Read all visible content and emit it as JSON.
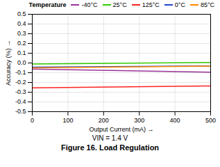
{
  "chart_data": {
    "type": "line",
    "title": "Figure 16. Load Regulation",
    "xlabel": "Output Current (mA)",
    "ylabel": "Accuracy (%)",
    "annotations": [
      "VIN = 1.4 V"
    ],
    "legend_title": "Temperature",
    "legend": "upper right",
    "grid": true,
    "x": [
      0,
      500
    ],
    "series": [
      {
        "name": "-40°C",
        "color": "#993399",
        "values": [
          -0.062,
          -0.095
        ]
      },
      {
        "name": "25°C",
        "color": "#33cc00",
        "values": [
          -0.01,
          0.005
        ]
      },
      {
        "name": "125°C",
        "color": "#ff2222",
        "values": [
          -0.255,
          -0.235
        ]
      },
      {
        "name": "0°C",
        "color": "#2244cc",
        "values": [
          -0.042,
          -0.03
        ]
      },
      {
        "name": "85°C",
        "color": "#ff8800",
        "values": [
          -0.05,
          -0.032
        ]
      }
    ],
    "xlim": [
      0,
      500
    ],
    "ylim": [
      -0.5,
      0.5
    ],
    "xticks": [
      0,
      100,
      200,
      300,
      400,
      500
    ],
    "yticks": [
      -0.5,
      -0.4,
      -0.3,
      -0.2,
      -0.1,
      {
        "value": 0,
        "label": "0.0"
      },
      0.1,
      0.2,
      0.3,
      0.4,
      0.5
    ]
  }
}
